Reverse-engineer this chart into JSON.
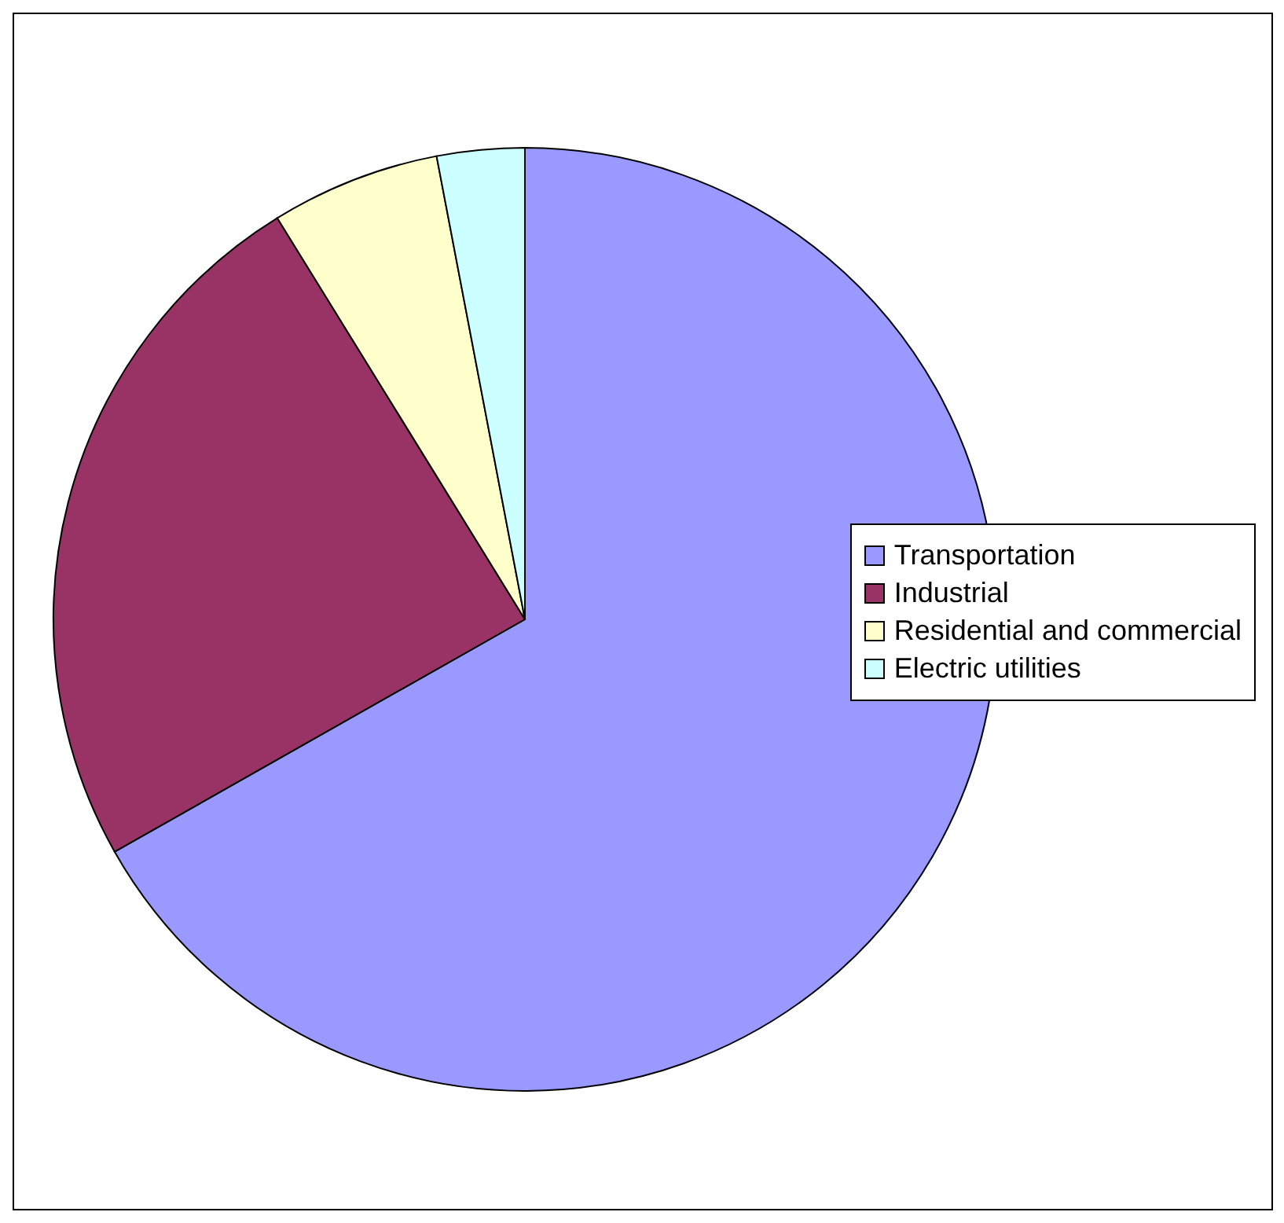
{
  "chart_data": {
    "type": "pie",
    "categories": [
      "Transportation",
      "Industrial",
      "Residential and commercial",
      "Electric utilities"
    ],
    "values": [
      66.8,
      24.4,
      5.8,
      3.0
    ],
    "colors": [
      "#9999ff",
      "#993366",
      "#ffffcc",
      "#ccffff"
    ],
    "legend": "right"
  }
}
